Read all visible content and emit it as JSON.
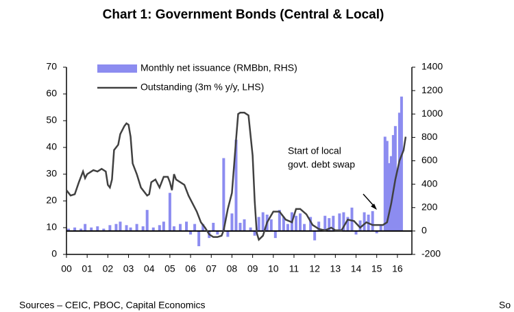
{
  "chart_data": {
    "type": "bar-line",
    "title": "Chart 1: Government Bonds (Central & Local)",
    "annotation": [
      "Start of local",
      "govt. debt swap"
    ],
    "source": "Sources – CEIC, PBOC, Capital Economics",
    "footer_right": "So",
    "xlim": [
      0,
      16.7
    ],
    "xticks": [
      {
        "value": 0,
        "label": "00"
      },
      {
        "value": 1,
        "label": "01"
      },
      {
        "value": 2,
        "label": "02"
      },
      {
        "value": 3,
        "label": "03"
      },
      {
        "value": 4,
        "label": "04"
      },
      {
        "value": 5,
        "label": "05"
      },
      {
        "value": 6,
        "label": "06"
      },
      {
        "value": 7,
        "label": "07"
      },
      {
        "value": 8,
        "label": "08"
      },
      {
        "value": 9,
        "label": "09"
      },
      {
        "value": 10,
        "label": "10"
      },
      {
        "value": 11,
        "label": "11"
      },
      {
        "value": 12,
        "label": "12"
      },
      {
        "value": 13,
        "label": "13"
      },
      {
        "value": 14,
        "label": "14"
      },
      {
        "value": 15,
        "label": "15"
      },
      {
        "value": 16,
        "label": "16"
      }
    ],
    "ylim": [
      0,
      70
    ],
    "yticks": [
      0,
      10,
      20,
      30,
      40,
      50,
      60,
      70
    ],
    "y2lim": [
      -200,
      1400
    ],
    "y2ticks": [
      -200,
      0,
      200,
      400,
      600,
      800,
      1000,
      1200,
      1400
    ],
    "series": [
      {
        "name": "Monthly net issuance (RMBbn, RHS)",
        "type": "bar",
        "axis": "y2",
        "color": "#8c8cf0",
        "x": [
          0.1,
          0.4,
          0.7,
          0.9,
          1.2,
          1.5,
          1.8,
          2.1,
          2.4,
          2.6,
          2.9,
          3.1,
          3.4,
          3.7,
          3.9,
          4.2,
          4.5,
          4.7,
          5.0,
          5.2,
          5.5,
          5.8,
          6.0,
          6.2,
          6.4,
          6.6,
          6.9,
          7.1,
          7.3,
          7.6,
          7.8,
          8.0,
          8.2,
          8.4,
          8.6,
          8.9,
          9.1,
          9.3,
          9.5,
          9.7,
          9.9,
          10.1,
          10.3,
          10.5,
          10.7,
          10.9,
          11.1,
          11.3,
          11.5,
          11.8,
          12.0,
          12.2,
          12.5,
          12.7,
          12.9,
          13.2,
          13.4,
          13.6,
          13.8,
          14.0,
          14.2,
          14.4,
          14.6,
          14.8,
          15.0,
          15.2,
          15.4,
          15.5,
          15.6,
          15.7,
          15.8,
          15.9,
          16.0,
          16.1,
          16.2
        ],
        "values": [
          20,
          30,
          20,
          60,
          30,
          40,
          20,
          50,
          60,
          80,
          50,
          30,
          60,
          40,
          180,
          30,
          50,
          80,
          326,
          40,
          60,
          80,
          -30,
          60,
          -130,
          60,
          -60,
          70,
          -30,
          623,
          -50,
          150,
          780,
          70,
          100,
          30,
          -40,
          120,
          160,
          140,
          100,
          -60,
          180,
          120,
          60,
          160,
          130,
          150,
          60,
          120,
          -80,
          80,
          130,
          110,
          130,
          150,
          160,
          120,
          200,
          -30,
          90,
          160,
          140,
          170,
          -20,
          50,
          806,
          770,
          580,
          640,
          820,
          897,
          520,
          1011,
          1149
        ]
      },
      {
        "name": "Outstanding (3m % y/y, LHS)",
        "type": "line",
        "axis": "y",
        "color": "#404040",
        "x": [
          0,
          0.1,
          0.2,
          0.4,
          0.6,
          0.8,
          0.9,
          1.0,
          1.3,
          1.5,
          1.7,
          1.9,
          2.0,
          2.1,
          2.2,
          2.3,
          2.5,
          2.6,
          2.8,
          2.9,
          3.0,
          3.1,
          3.2,
          3.4,
          3.6,
          3.8,
          3.9,
          4.0,
          4.1,
          4.3,
          4.5,
          4.7,
          4.9,
          5.0,
          5.1,
          5.2,
          5.3,
          5.5,
          5.7,
          5.9,
          6.1,
          6.3,
          6.5,
          6.7,
          6.9,
          7.1,
          7.3,
          7.5,
          7.6,
          7.8,
          8.0,
          8.2,
          8.3,
          8.4,
          8.6,
          8.8,
          9.0,
          9.1,
          9.2,
          9.3,
          9.5,
          9.7,
          10.0,
          10.3,
          10.6,
          10.9,
          11.1,
          11.3,
          11.6,
          11.9,
          12.2,
          12.5,
          12.8,
          13.0,
          13.3,
          13.6,
          13.9,
          14.2,
          14.5,
          14.8,
          15.0,
          15.3,
          15.5,
          15.7,
          15.9,
          16.1,
          16.3,
          16.4
        ],
        "values": [
          24,
          23,
          22,
          22.5,
          27,
          31,
          28.5,
          30,
          31.5,
          31,
          32,
          31,
          26,
          25,
          28,
          39,
          41,
          45,
          48,
          49,
          48.5,
          44,
          34,
          30,
          25,
          23,
          22,
          22.5,
          27,
          28,
          25,
          29,
          29,
          27,
          24,
          30,
          28,
          27,
          26,
          22,
          19,
          16,
          12,
          10,
          7.5,
          6.5,
          6.5,
          7,
          9,
          17,
          23,
          43,
          52.5,
          53,
          53,
          52,
          37,
          20,
          8,
          5.5,
          7,
          12,
          16,
          16,
          13,
          12,
          17,
          17,
          15,
          11,
          9.5,
          9,
          10,
          9,
          9,
          13,
          12.5,
          10,
          12,
          11,
          11,
          11,
          12,
          19,
          28,
          35,
          39,
          44
        ]
      }
    ]
  }
}
